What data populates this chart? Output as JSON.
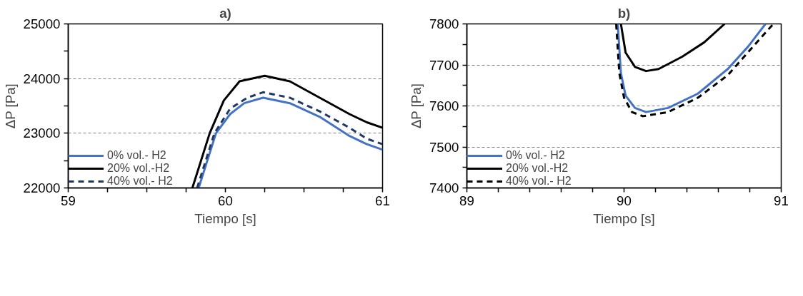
{
  "chart_data": [
    {
      "type": "line",
      "title": "a)",
      "xlabel": "Tiempo [s]",
      "ylabel": "ΔP [Pa]",
      "xlim": [
        59,
        61
      ],
      "ylim": [
        22000,
        25000
      ],
      "xticks": [
        59,
        {
          "value": 59.25,
          "label": null
        },
        {
          "value": 59.5,
          "label": null
        },
        {
          "value": 59.75,
          "label": null
        },
        60,
        {
          "value": 60.25,
          "label": null
        },
        {
          "value": 60.5,
          "label": null
        },
        {
          "value": 60.75,
          "label": null
        },
        61
      ],
      "yticks": [
        22000,
        {
          "value": 22500,
          "label": null
        },
        23000,
        {
          "value": 23500,
          "label": null
        },
        24000,
        {
          "value": 24500,
          "label": null
        },
        25000
      ],
      "grid": "y",
      "legend": "bottom left",
      "line_style": "solid",
      "series": [
        {
          "name": "0% vol.- H2",
          "color": "#4472c4",
          "x": [
            59.83,
            59.94,
            60.03,
            60.12,
            60.24,
            60.41,
            60.6,
            60.79,
            60.9,
            61
          ],
          "values": [
            22000,
            23000,
            23350,
            23550,
            23650,
            23550,
            23300,
            22950,
            22800,
            22700
          ]
        },
        {
          "name": "20% vol.-H2",
          "color": "#000000",
          "x": [
            59.79,
            59.9,
            59.99,
            60.09,
            60.25,
            60.41,
            60.6,
            60.79,
            60.9,
            61
          ],
          "values": [
            22000,
            23000,
            23600,
            23950,
            24050,
            23950,
            23650,
            23350,
            23200,
            23100
          ]
        },
        {
          "name": "40% vol.- H2",
          "color": "#1f3864",
          "line_style": "dashed",
          "x": [
            59.82,
            59.93,
            60.03,
            60.14,
            60.24,
            60.41,
            60.6,
            60.79,
            60.9,
            61
          ],
          "values": [
            22000,
            23000,
            23450,
            23650,
            23750,
            23650,
            23400,
            23100,
            22900,
            22800
          ]
        }
      ]
    },
    {
      "type": "line",
      "title": "b)",
      "xlabel": "Tiempo [s]",
      "ylabel": "ΔP [Pa]",
      "xlim": [
        89,
        91
      ],
      "ylim": [
        7400,
        7800
      ],
      "xticks": [
        89,
        {
          "value": 89.2,
          "label": null
        },
        {
          "value": 89.4,
          "label": null
        },
        {
          "value": 89.6,
          "label": null
        },
        {
          "value": 89.8,
          "label": null
        },
        90,
        {
          "value": 90.2,
          "label": null
        },
        {
          "value": 90.4,
          "label": null
        },
        {
          "value": 90.6,
          "label": null
        },
        {
          "value": 90.8,
          "label": null
        },
        91
      ],
      "yticks": [
        7400,
        {
          "value": 7450,
          "label": null
        },
        7500,
        {
          "value": 7550,
          "label": null
        },
        7600,
        {
          "value": 7650,
          "label": null
        },
        7700,
        {
          "value": 7750,
          "label": null
        },
        7800
      ],
      "grid": "y",
      "legend": "bottom left",
      "line_style": "solid",
      "series": [
        {
          "name": "0% vol.- H2",
          "color": "#4472c4",
          "x": [
            89.96,
            89.98,
            90.01,
            90.07,
            90.14,
            90.28,
            90.47,
            90.66,
            90.79,
            90.9
          ],
          "values": [
            7800,
            7680,
            7625,
            7595,
            7585,
            7595,
            7630,
            7690,
            7745,
            7800
          ]
        },
        {
          "name": "20% vol.-H2",
          "color": "#000000",
          "x": [
            89.98,
            90.01,
            90.07,
            90.14,
            90.22,
            90.37,
            90.51,
            90.64
          ],
          "values": [
            7800,
            7730,
            7695,
            7685,
            7690,
            7720,
            7755,
            7800
          ]
        },
        {
          "name": "40% vol.- H2",
          "color": "#000000",
          "line_style": "dashed",
          "x": [
            89.95,
            89.97,
            90.0,
            90.05,
            90.12,
            90.28,
            90.47,
            90.66,
            90.81,
            90.95
          ],
          "values": [
            7800,
            7680,
            7620,
            7585,
            7575,
            7585,
            7620,
            7675,
            7740,
            7800
          ]
        }
      ]
    }
  ]
}
